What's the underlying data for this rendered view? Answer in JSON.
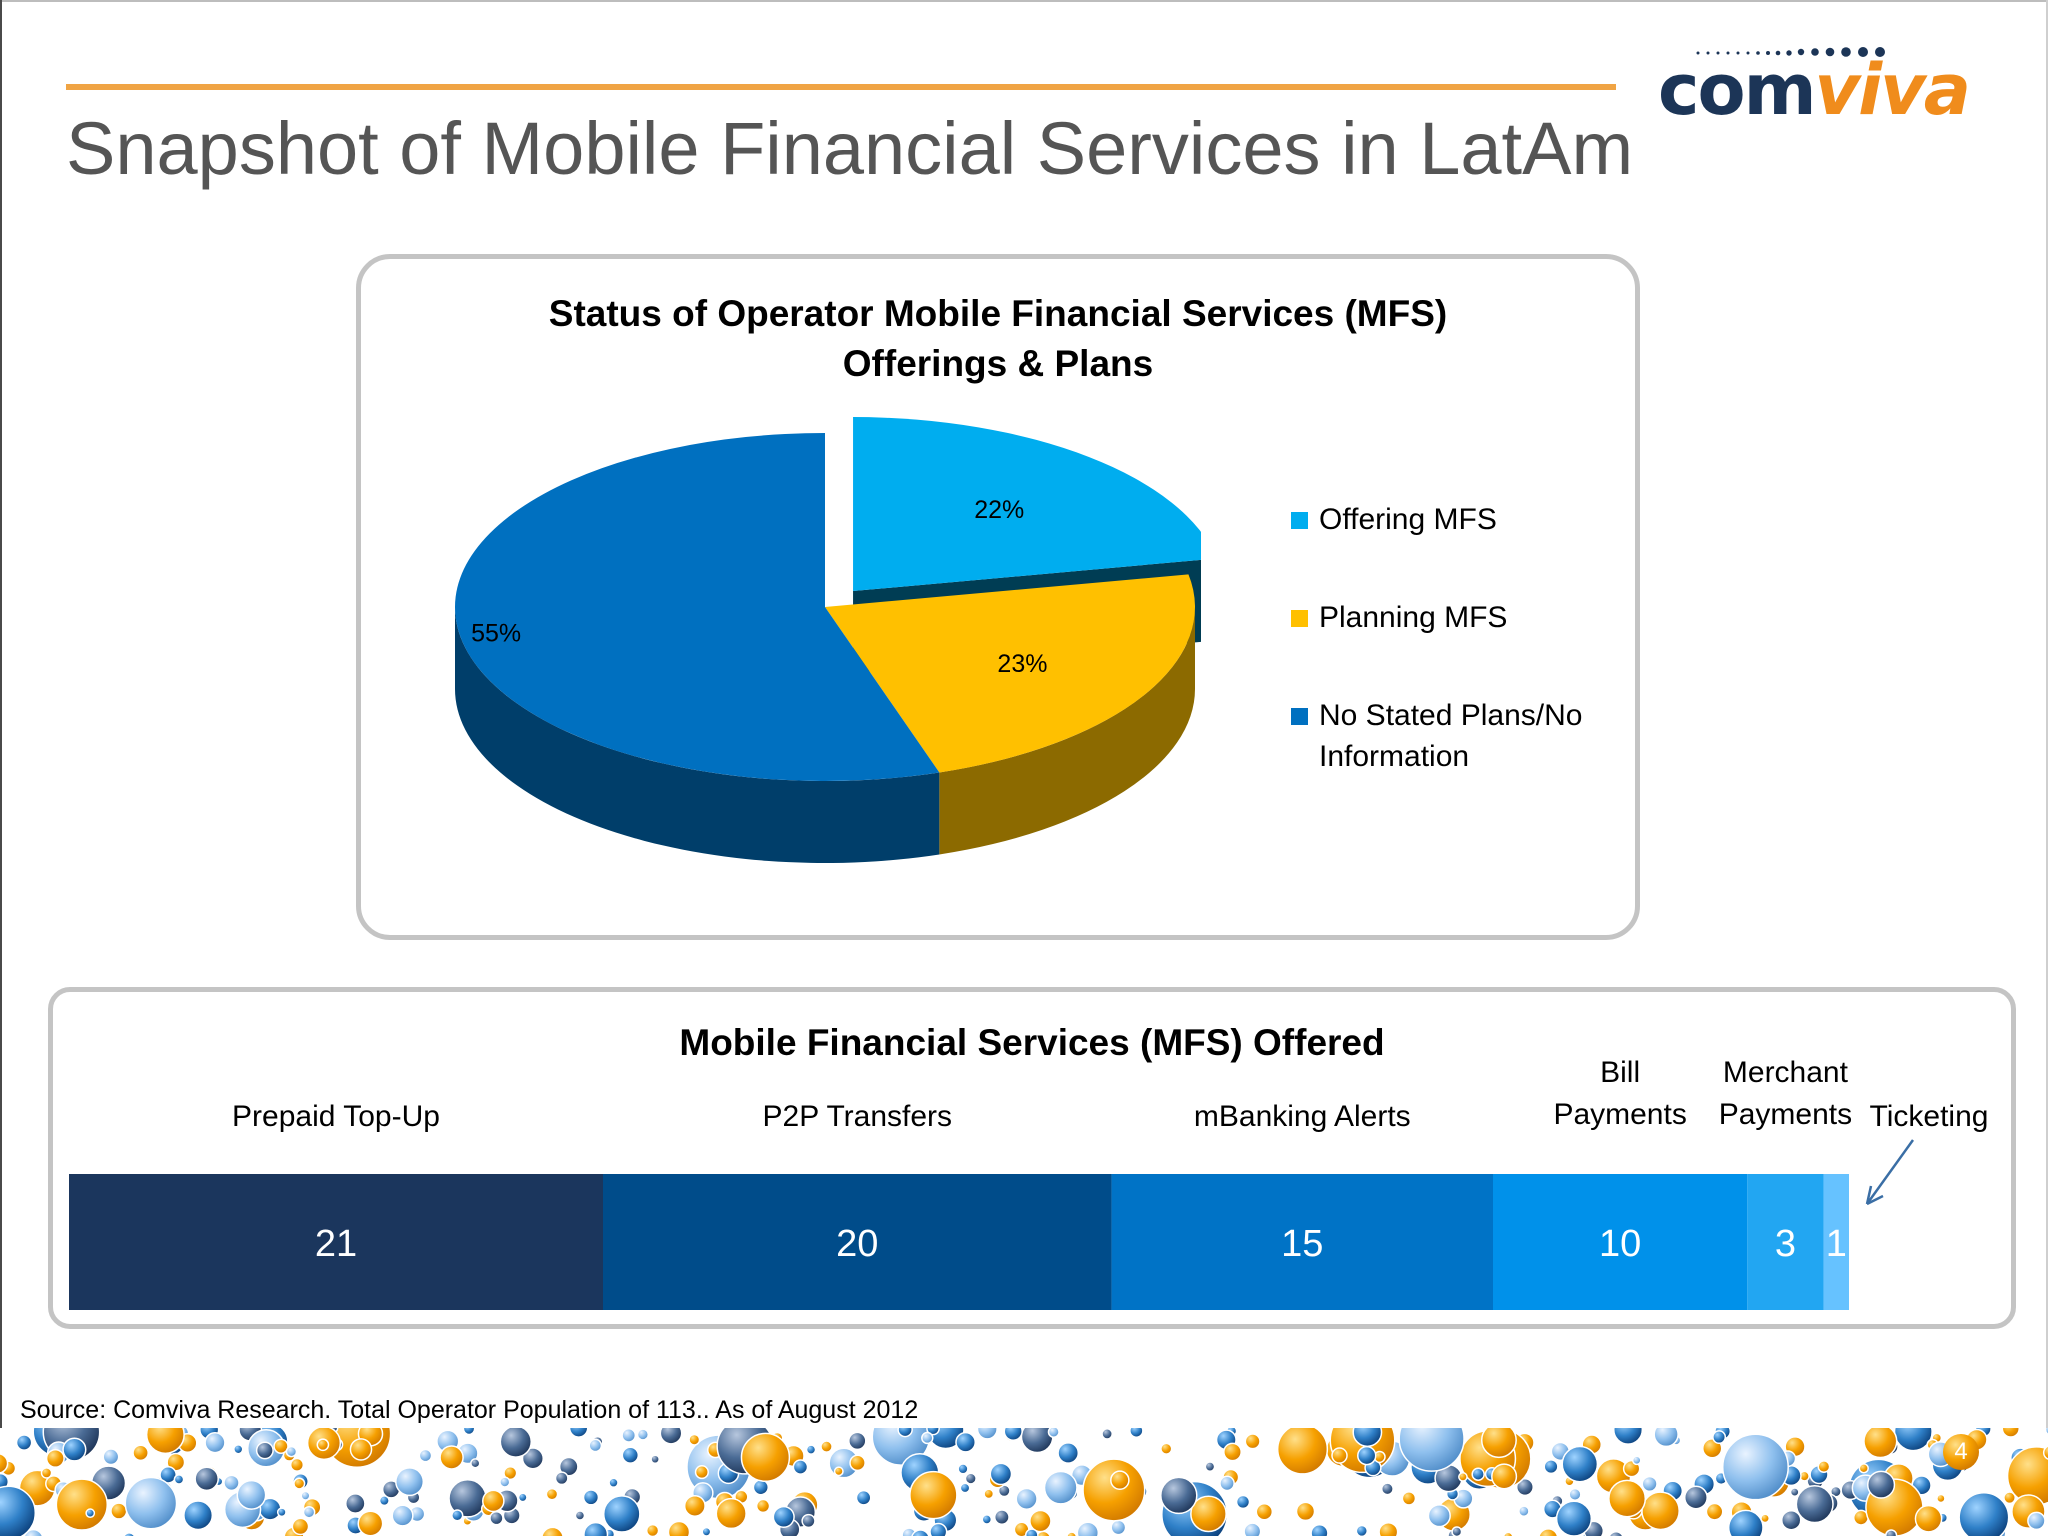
{
  "slide": {
    "title": "Snapshot of Mobile Financial Services in LatAm",
    "source": "Source: Comviva Research. Total Operator Population of 113.. As of August 2012",
    "slide_number": "4",
    "logo": {
      "part1": "com",
      "part2": "viva"
    },
    "colors": {
      "accent_rule": "#f0a444",
      "title_text": "#555555",
      "panel_border": "#c4c4c4"
    }
  },
  "chart_data": [
    {
      "type": "pie",
      "title_lines": [
        "Status of Operator Mobile Financial Services (MFS)",
        "Offerings & Plans"
      ],
      "slices": [
        {
          "label": "Offering MFS",
          "value": 22,
          "display": "22%",
          "color": "#00adef",
          "exploded": true
        },
        {
          "label": "Planning MFS",
          "value": 23,
          "display": "23%",
          "color": "#ffc000",
          "exploded": false
        },
        {
          "label": "No Stated Plans/No Information",
          "value": 55,
          "display": "55%",
          "color": "#0070c0",
          "exploded": false
        }
      ],
      "legend": {
        "placement": "right",
        "items": [
          {
            "lines": [
              "Offering MFS"
            ],
            "color": "#00adef"
          },
          {
            "lines": [
              "Planning MFS"
            ],
            "color": "#ffc000"
          },
          {
            "lines": [
              "No Stated Plans/No",
              "Information"
            ],
            "color": "#0070c0"
          }
        ]
      }
    },
    {
      "type": "bar",
      "orientation": "horizontal-stacked",
      "title": "Mobile Financial Services (MFS) Offered",
      "segments": [
        {
          "label": "Prepaid Top-Up",
          "label_lines": [
            "Prepaid Top-Up"
          ],
          "value": 21,
          "display": "21",
          "color": "#1b365d"
        },
        {
          "label": "P2P Transfers",
          "label_lines": [
            "P2P Transfers"
          ],
          "value": 20,
          "display": "20",
          "color": "#004c8a"
        },
        {
          "label": "mBanking Alerts",
          "label_lines": [
            "mBanking Alerts"
          ],
          "value": 15,
          "display": "15",
          "color": "#0073c6"
        },
        {
          "label": "Bill Payments",
          "label_lines": [
            "Bill",
            "Payments"
          ],
          "value": 10,
          "display": "10",
          "color": "#0091ea"
        },
        {
          "label": "Merchant Payments",
          "label_lines": [
            "Merchant",
            "Payments"
          ],
          "value": 3,
          "display": "3",
          "color": "#22a6f2"
        },
        {
          "label": "Ticketing",
          "label_lines": [
            "Ticketing"
          ],
          "value": 1,
          "display": "1",
          "color": "#66c2ff",
          "callout": true
        }
      ]
    }
  ]
}
